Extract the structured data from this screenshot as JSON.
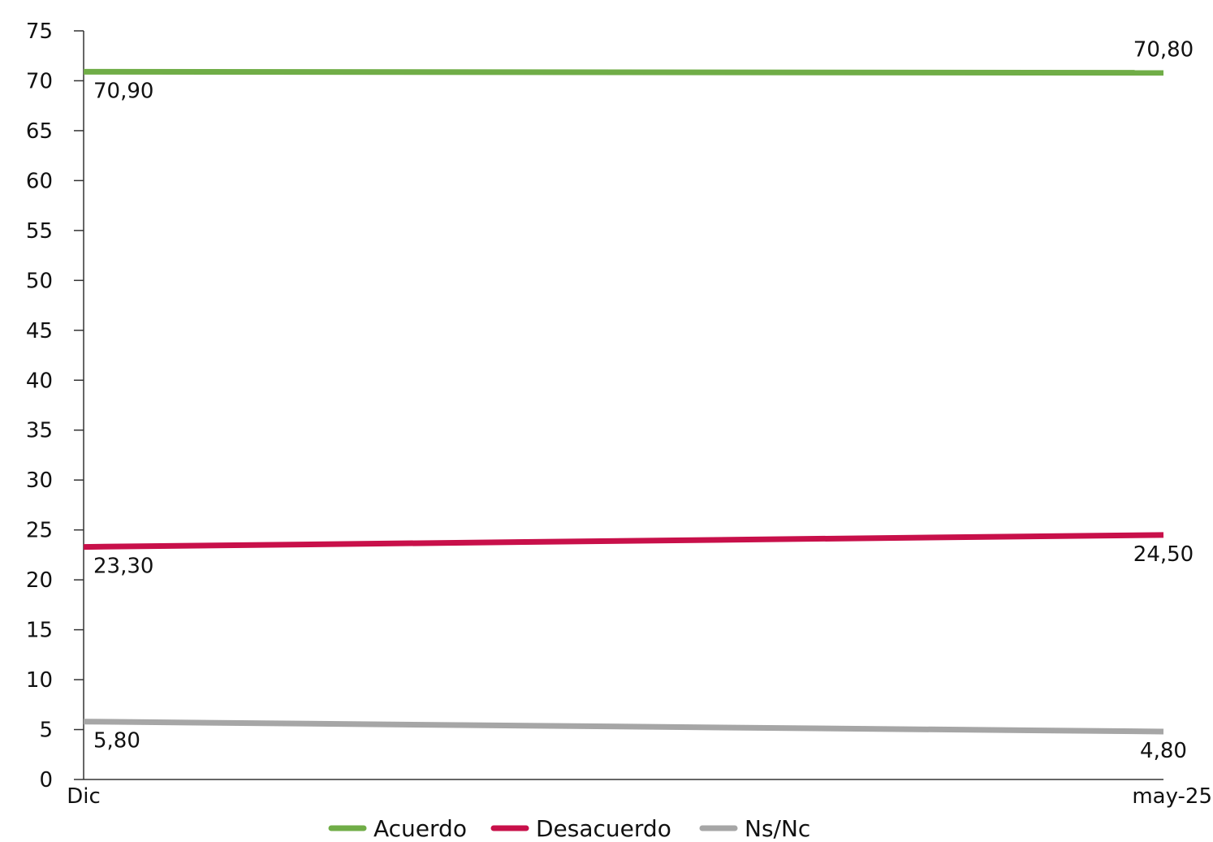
{
  "chart_data": {
    "type": "line",
    "categories": [
      "Dic",
      "may-25"
    ],
    "ylim": [
      0,
      75
    ],
    "yticks": [
      0,
      5,
      10,
      15,
      20,
      25,
      30,
      35,
      40,
      45,
      50,
      55,
      60,
      65,
      70,
      75
    ],
    "grid": false,
    "legend_position": "bottom",
    "series": [
      {
        "name": "Acuerdo",
        "color": "#70ad47",
        "values": [
          70.9,
          70.8
        ],
        "labels": [
          "70,90",
          "70,80"
        ]
      },
      {
        "name": "Desacuerdo",
        "color": "#c8104a",
        "values": [
          23.3,
          24.5
        ],
        "labels": [
          "23,30",
          "24,50"
        ]
      },
      {
        "name": "Ns/Nc",
        "color": "#a6a6a6",
        "values": [
          5.8,
          4.8
        ],
        "labels": [
          "5,80",
          "4,80"
        ]
      }
    ]
  }
}
